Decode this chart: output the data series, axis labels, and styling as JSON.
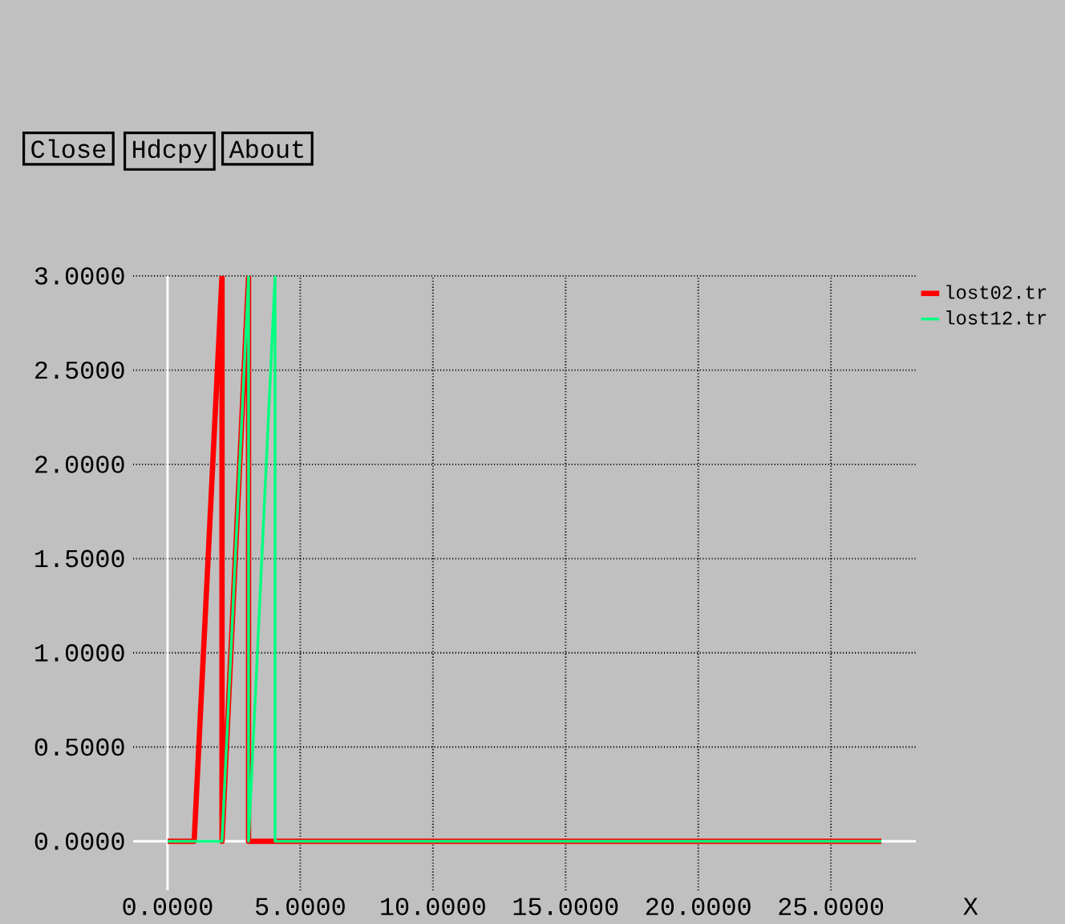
{
  "chart_data": {
    "type": "line",
    "xlabel": "X",
    "annotations": [
      "Close",
      "Hdcpy",
      "About"
    ],
    "xlim": [
      -1.3,
      28.2
    ],
    "ylim": [
      -0.26,
      3.0
    ],
    "xticks": [
      {
        "value": 0,
        "label": "0.0000"
      },
      {
        "value": 5,
        "label": "5.0000"
      },
      {
        "value": 10,
        "label": "10.0000"
      },
      {
        "value": 15,
        "label": "15.0000"
      },
      {
        "value": 20,
        "label": "20.0000"
      },
      {
        "value": 25,
        "label": "25.0000"
      }
    ],
    "yticks": [
      {
        "value": 0,
        "label": "0.0000"
      },
      {
        "value": 0.5,
        "label": "0.5000"
      },
      {
        "value": 1,
        "label": "1.0000"
      },
      {
        "value": 1.5,
        "label": "1.5000"
      },
      {
        "value": 2,
        "label": "2.0000"
      },
      {
        "value": 2.5,
        "label": "2.5000"
      },
      {
        "value": 3,
        "label": "3.0000"
      }
    ],
    "grid": true,
    "legend": "top right",
    "line_style": "solid",
    "marker": "none",
    "series": [
      {
        "name": "lost02.tr",
        "color": "#ff0000",
        "x": [
          0,
          1.0,
          2.05,
          2.05,
          3.05,
          3.05,
          26.9
        ],
        "values": [
          0,
          0,
          3,
          0,
          3,
          0,
          0
        ]
      },
      {
        "name": "lost12.tr",
        "color": "#00ff80",
        "x": [
          0,
          2.05,
          3.05,
          3.05,
          4.05,
          4.05,
          26.9
        ],
        "values": [
          0,
          0,
          3,
          0,
          3,
          0,
          0
        ]
      }
    ]
  }
}
